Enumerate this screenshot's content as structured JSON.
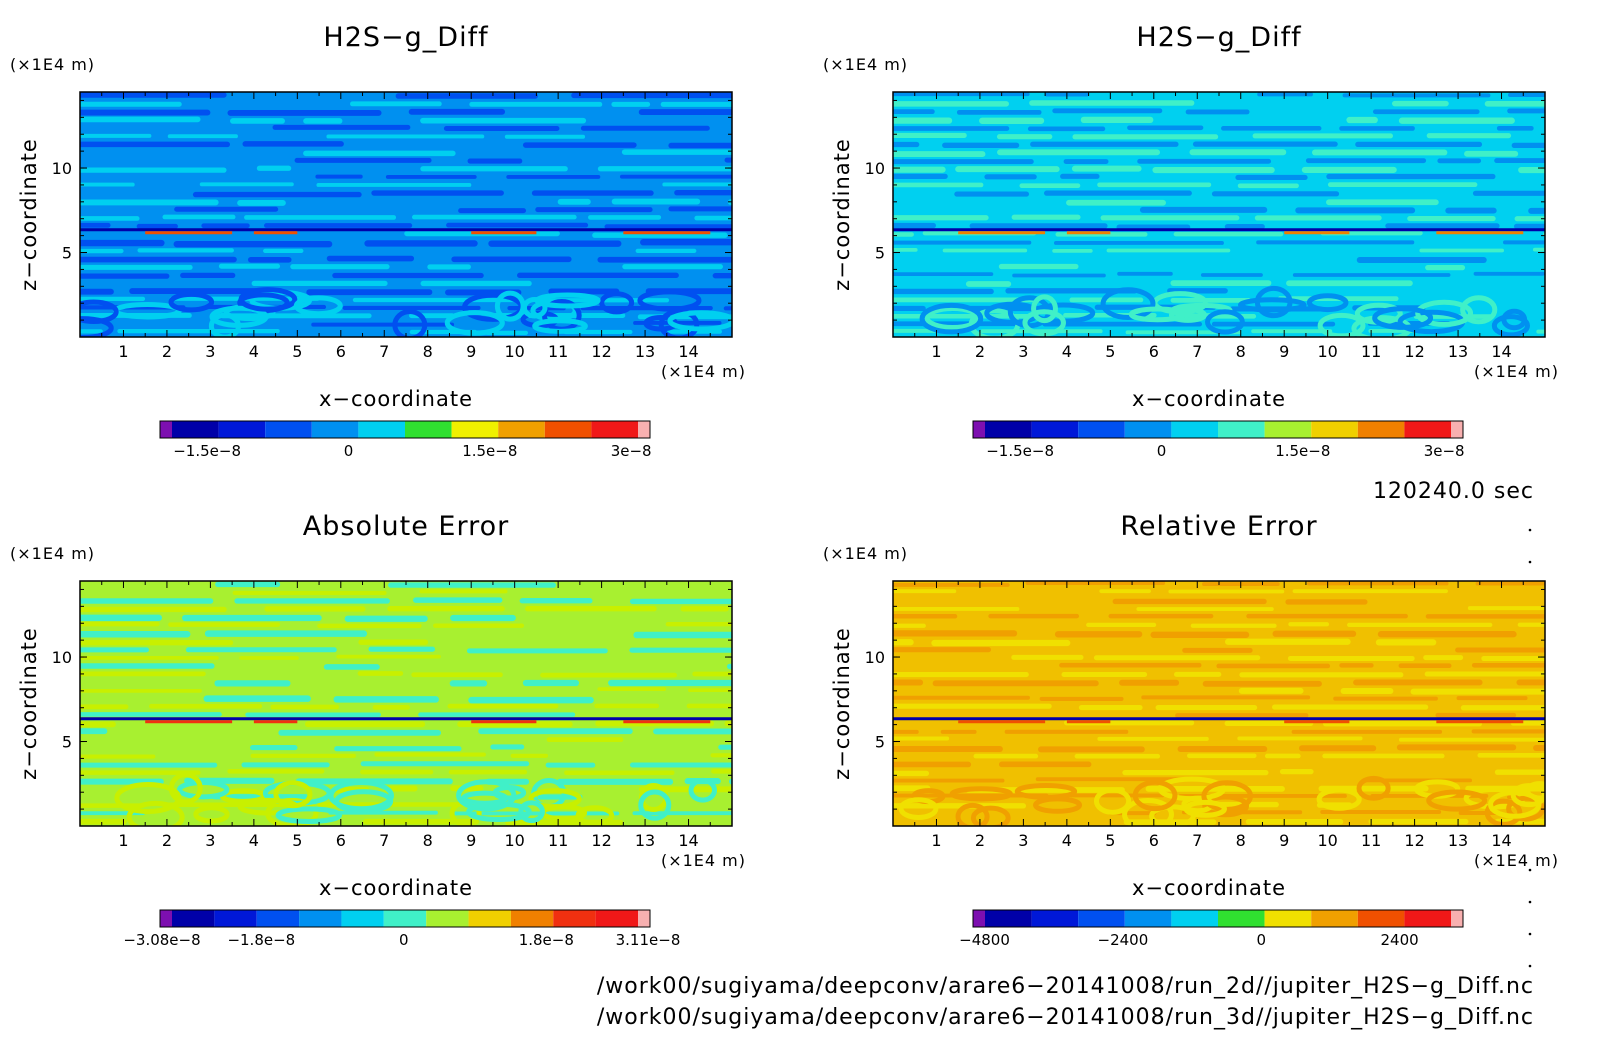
{
  "panels": [
    {
      "title": "H2S−g_Diff",
      "xlabel": "x−coordinate",
      "ylabel": "z−coordinate",
      "xunit": "(×1E4 m)",
      "yunit": "(×1E4 m)",
      "xticks": [
        "1",
        "2",
        "3",
        "4",
        "5",
        "6",
        "7",
        "8",
        "9",
        "10",
        "11",
        "12",
        "13",
        "14"
      ],
      "yticks": [
        "5",
        "10"
      ],
      "palette": [
        "#7d0fb0",
        "#0000a8",
        "#0018d8",
        "#0050f0",
        "#0090f0",
        "#00d0f0",
        "#30e030",
        "#f0f000",
        "#f0a000",
        "#f05000",
        "#f01818",
        "#f8b0b0"
      ],
      "field_colors": [
        "#0050f0",
        "#0090f0",
        "#00d0f0"
      ],
      "colorbar_ticks": [
        "−1.5e−8",
        "0",
        "1.5e−8",
        "3e−8"
      ]
    },
    {
      "title": "H2S−g_Diff",
      "xlabel": "x−coordinate",
      "ylabel": "z−coordinate",
      "xunit": "(×1E4 m)",
      "yunit": "(×1E4 m)",
      "xticks": [
        "1",
        "2",
        "3",
        "4",
        "5",
        "6",
        "7",
        "8",
        "9",
        "10",
        "11",
        "12",
        "13",
        "14"
      ],
      "yticks": [
        "5",
        "10"
      ],
      "palette": [
        "#7d0fb0",
        "#0000a8",
        "#0018d8",
        "#0050f0",
        "#0090f0",
        "#00d0f0",
        "#40f0c8",
        "#a8f030",
        "#f0d000",
        "#f08000",
        "#f01818",
        "#f8b0b0"
      ],
      "field_colors": [
        "#0090f0",
        "#00d0f0",
        "#40f0c8"
      ],
      "colorbar_ticks": [
        "−1.5e−8",
        "0",
        "1.5e−8",
        "3e−8"
      ]
    },
    {
      "title": "Absolute Error",
      "xlabel": "x−coordinate",
      "ylabel": "z−coordinate",
      "xunit": "(×1E4 m)",
      "yunit": "(×1E4 m)",
      "xticks": [
        "1",
        "2",
        "3",
        "4",
        "5",
        "6",
        "7",
        "8",
        "9",
        "10",
        "11",
        "12",
        "13",
        "14"
      ],
      "yticks": [
        "5",
        "10"
      ],
      "palette": [
        "#7d0fb0",
        "#0000a8",
        "#0018d8",
        "#0050f0",
        "#0090f0",
        "#00d0f0",
        "#40f0c8",
        "#a8f030",
        "#f0d000",
        "#f08000",
        "#f03010",
        "#f01818",
        "#f8b0b0"
      ],
      "field_colors": [
        "#40f0c8",
        "#a8f030",
        "#c8f000"
      ],
      "colorbar_ticks": [
        "−3.08e−8",
        "−1.8e−8",
        "0",
        "1.8e−8",
        "3.11e−8"
      ]
    },
    {
      "title": "Relative Error",
      "xlabel": "x−coordinate",
      "ylabel": "z−coordinate",
      "xunit": "(×1E4 m)",
      "yunit": "(×1E4 m)",
      "xticks": [
        "1",
        "2",
        "3",
        "4",
        "5",
        "6",
        "7",
        "8",
        "9",
        "10",
        "11",
        "12",
        "13",
        "14"
      ],
      "yticks": [
        "5",
        "10"
      ],
      "palette": [
        "#7d0fb0",
        "#0000a8",
        "#0018d8",
        "#0050f0",
        "#0090f0",
        "#00d0f0",
        "#30e030",
        "#f0e000",
        "#f0a000",
        "#f05000",
        "#f01818",
        "#f8b0b0"
      ],
      "field_colors": [
        "#f0a000",
        "#f0c000",
        "#f0e000"
      ],
      "colorbar_ticks": [
        "−4800",
        "−2400",
        "0",
        "2400"
      ]
    }
  ],
  "time_label": "120240.0 sec",
  "file_paths": [
    "/work00/sugiyama/deepconv/arare6−20141008/run_2d//jupiter_H2S−g_Diff.nc",
    "/work00/sugiyama/deepconv/arare6−20141008/run_3d//jupiter_H2S−g_Diff.nc"
  ],
  "chart_data": [
    {
      "type": "heatmap",
      "title": "H2S−g_Diff",
      "xlabel": "x−coordinate",
      "ylabel": "z−coordinate",
      "x_unit": "(×1E4 m)",
      "y_unit": "(×1E4 m)",
      "xlim": [
        0,
        15
      ],
      "ylim": [
        0,
        14.5
      ],
      "x_ticks": [
        1,
        2,
        3,
        4,
        5,
        6,
        7,
        8,
        9,
        10,
        11,
        12,
        13,
        14
      ],
      "y_ticks": [
        5,
        10
      ],
      "colorbar_range": [
        -2e-08,
        3.2e-08
      ],
      "colorbar_ticks": [
        -1.5e-08,
        0,
        1.5e-08,
        3e-08
      ],
      "features": "horizontal banded layers; strong positive/negative values near z = 6.2; swirling structures below z = 2.5"
    },
    {
      "type": "heatmap",
      "title": "H2S−g_Diff",
      "xlabel": "x−coordinate",
      "ylabel": "z−coordinate",
      "x_unit": "(×1E4 m)",
      "y_unit": "(×1E4 m)",
      "xlim": [
        0,
        15
      ],
      "ylim": [
        0,
        14.5
      ],
      "x_ticks": [
        1,
        2,
        3,
        4,
        5,
        6,
        7,
        8,
        9,
        10,
        11,
        12,
        13,
        14
      ],
      "y_ticks": [
        5,
        10
      ],
      "colorbar_range": [
        -2e-08,
        3.2e-08
      ],
      "colorbar_ticks": [
        -1.5e-08,
        0,
        1.5e-08,
        3e-08
      ],
      "features": "horizontal banded layers; extreme values near z = 6.2"
    },
    {
      "type": "heatmap",
      "title": "Absolute Error",
      "xlabel": "x−coordinate",
      "ylabel": "z−coordinate",
      "x_unit": "(×1E4 m)",
      "y_unit": "(×1E4 m)",
      "xlim": [
        0,
        15
      ],
      "ylim": [
        0,
        14.5
      ],
      "x_ticks": [
        1,
        2,
        3,
        4,
        5,
        6,
        7,
        8,
        9,
        10,
        11,
        12,
        13,
        14
      ],
      "y_ticks": [
        5,
        10
      ],
      "colorbar_range": [
        -3.08e-08,
        3.11e-08
      ],
      "colorbar_ticks": [
        -3.08e-08,
        -1.8e-08,
        0,
        1.8e-08,
        3.11e-08
      ],
      "features": "mostly near-zero banded field; extremes along z = 6.3"
    },
    {
      "type": "heatmap",
      "title": "Relative Error",
      "xlabel": "x−coordinate",
      "ylabel": "z−coordinate",
      "x_unit": "(×1E4 m)",
      "y_unit": "(×1E4 m)",
      "xlim": [
        0,
        15
      ],
      "ylim": [
        0,
        14.5
      ],
      "x_ticks": [
        1,
        2,
        3,
        4,
        5,
        6,
        7,
        8,
        9,
        10,
        11,
        12,
        13,
        14
      ],
      "y_ticks": [
        5,
        10
      ],
      "colorbar_range": [
        -5000,
        3500
      ],
      "colorbar_ticks": [
        -4800,
        -2400,
        0,
        2400
      ],
      "features": "field mostly between 0 and 1200; small isolated minima near (6.5, 1.5) and (9, 1.5)"
    }
  ]
}
